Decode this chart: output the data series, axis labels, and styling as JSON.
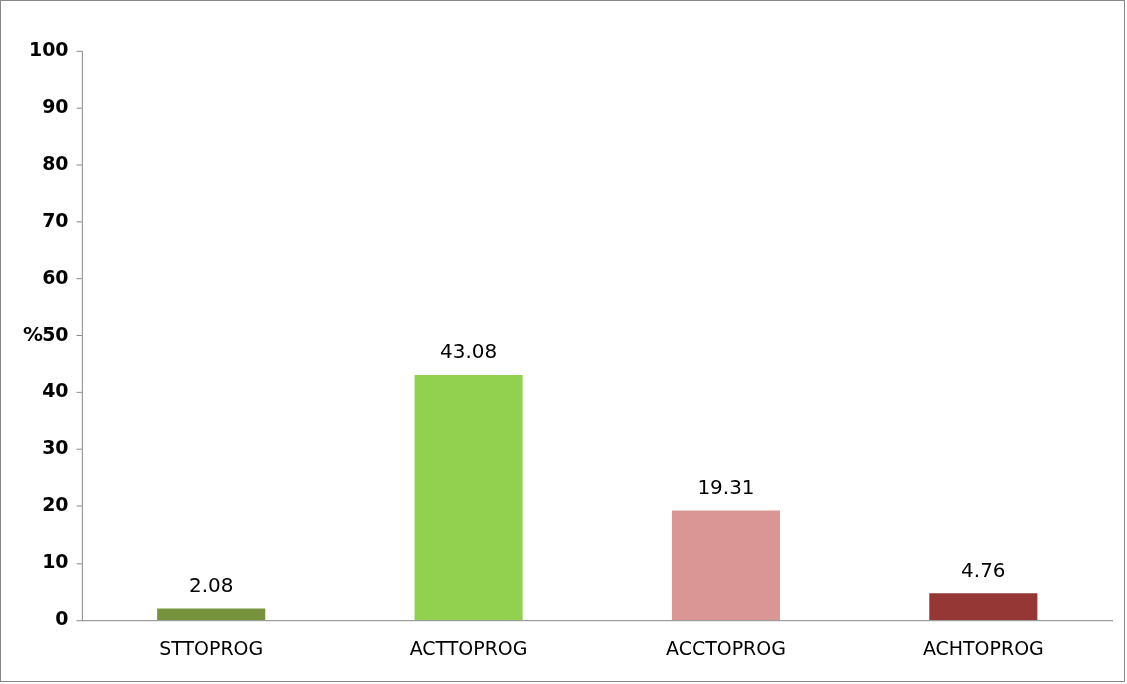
{
  "chart_data": {
    "type": "bar",
    "ylabel": "%",
    "categories": [
      "STTOPROG",
      "ACTTOPROG",
      "ACCTOPROG",
      "ACHTOPROG"
    ],
    "values": [
      2.08,
      43.08,
      19.31,
      4.76
    ],
    "colors": [
      "#76923c",
      "#92d050",
      "#d99694",
      "#953735"
    ],
    "ylim": [
      0,
      100
    ],
    "yticks": [
      0,
      10,
      20,
      30,
      40,
      50,
      60,
      70,
      80,
      90,
      100
    ],
    "grid": false,
    "legend": false,
    "data_labels": true
  }
}
